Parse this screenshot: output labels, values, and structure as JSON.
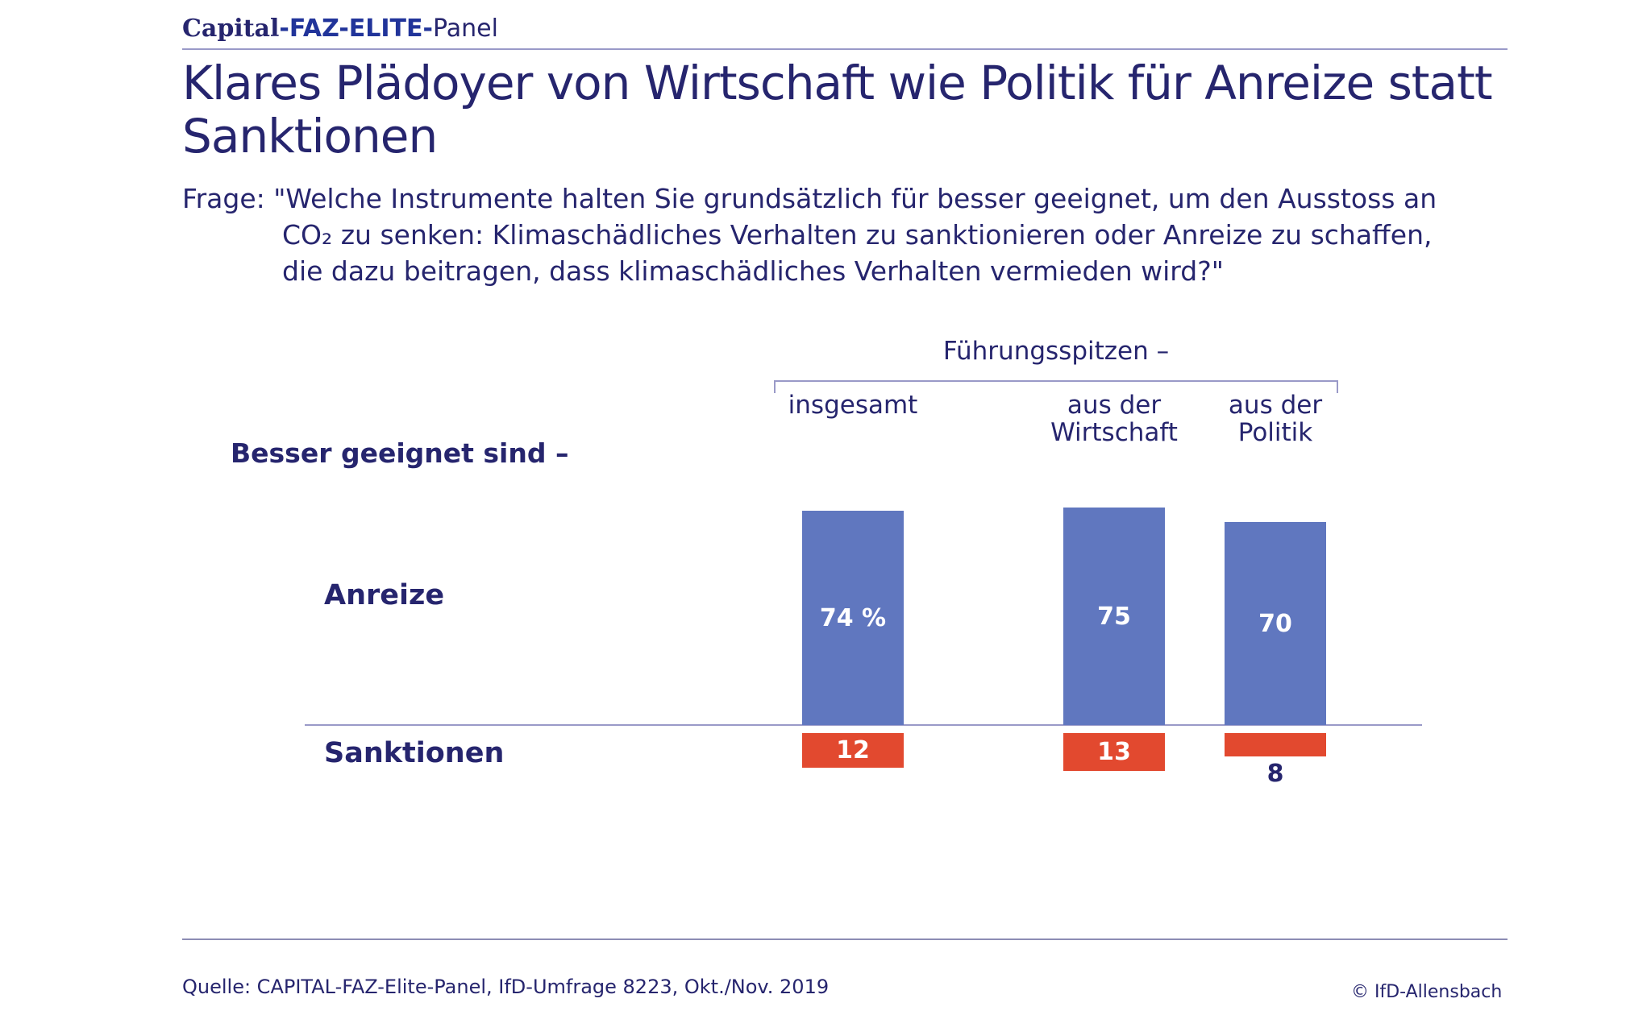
{
  "header": {
    "brand_capital": "Capital",
    "brand_faz": "-FAZ-ELITE-",
    "brand_panel": "Panel",
    "title": "Klares Plädoyer von Wirtschaft wie Politik für Anreize statt Sanktionen",
    "question_lead": "Frage: \"Welche Instrumente halten Sie grundsätzlich für besser geeignet, um den Ausstoss an",
    "question_rest": "CO₂ zu senken: Klimaschädliches Verhalten zu sanktionieren oder Anreize zu schaffen, die dazu beitragen, dass klimaschädliches Verhalten vermieden wird?\""
  },
  "chart_data": {
    "type": "bar",
    "group_header": "Führungsspitzen –",
    "row_title": "Besser geeignet sind –",
    "categories": [
      "insgesamt",
      "aus der\nWirtschaft",
      "aus der\nPolitik"
    ],
    "series": [
      {
        "name": "Anreize",
        "values": [
          74,
          75,
          70
        ],
        "value_labels": [
          "74 %",
          "75",
          "70"
        ],
        "direction": "up"
      },
      {
        "name": "Sanktionen",
        "values": [
          12,
          13,
          8
        ],
        "value_labels": [
          "12",
          "13",
          "8"
        ],
        "direction": "down"
      }
    ],
    "colors": {
      "Anreize": "#6077bf",
      "Sanktionen": "#e2492f"
    }
  },
  "footer": {
    "source": "Quelle: CAPITAL-FAZ-Elite-Panel, IfD-Umfrage 8223, Okt./Nov. 2019",
    "copyright": "© IfD-Allensbach"
  }
}
